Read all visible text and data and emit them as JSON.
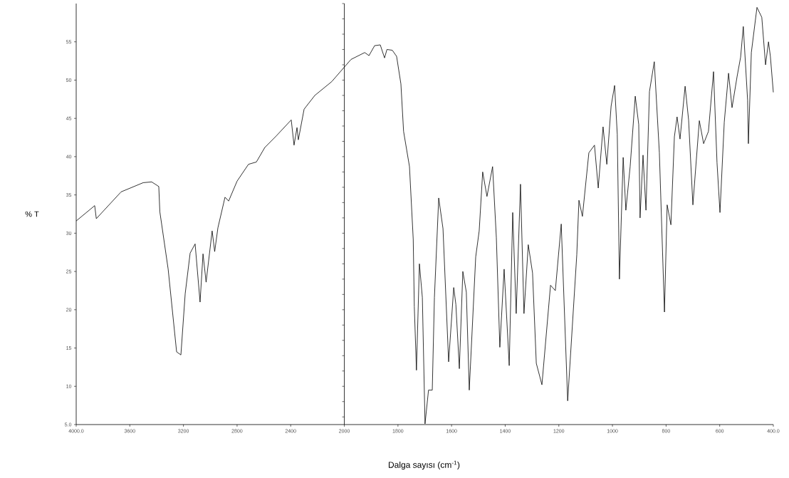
{
  "chart_data": [
    {
      "type": "line",
      "xlabel": "Dalga sayısı (cm$^{-1}$)",
      "ylabel": "% T",
      "xlim": [
        4000,
        2000
      ],
      "ylim": [
        5,
        60
      ],
      "xticks": [
        {
          "value": 4000,
          "label": "4000.0"
        },
        3600,
        3200,
        2800,
        2400,
        2000
      ],
      "yticks": [
        {
          "value": 5,
          "label": "5.0"
        },
        10,
        15,
        20,
        25,
        30,
        35,
        40,
        45,
        50,
        55
      ],
      "series": [
        {
          "color": "#000000",
          "x": [
            4000,
            3862,
            3850,
            3665,
            3500,
            3437,
            3384,
            3376,
            3314,
            3251,
            3219,
            3187,
            3150,
            3113,
            3076,
            3054,
            3031,
            2986,
            2967,
            2943,
            2890,
            2863,
            2800,
            2715,
            2656,
            2593,
            2508,
            2396,
            2375,
            2353,
            2343,
            2300,
            2220,
            2094,
            2000
          ],
          "values": [
            31.6,
            33.6,
            31.9,
            35.4,
            36.6,
            36.7,
            36.1,
            32.8,
            25.3,
            14.5,
            14.1,
            22.1,
            27.4,
            28.6,
            21.0,
            27.3,
            23.6,
            30.3,
            27.6,
            30.7,
            34.7,
            34.2,
            36.8,
            39.0,
            39.3,
            41.2,
            42.7,
            44.8,
            41.5,
            43.8,
            42.2,
            46.2,
            48.0,
            49.8,
            51.7
          ]
        }
      ]
    },
    {
      "type": "line",
      "tick_labels": "x",
      "xlim": [
        2000,
        400
      ],
      "ylim": [
        5,
        60
      ],
      "xticks": [
        1800,
        1600,
        1400,
        1200,
        1000,
        800,
        600,
        {
          "value": 400,
          "label": "400.0"
        }
      ],
      "series": [
        {
          "color": "#000000",
          "x": [
            2000,
            1975,
            1924,
            1908,
            1887,
            1866,
            1850,
            1841,
            1821,
            1805,
            1789,
            1779,
            1757,
            1743,
            1739,
            1731,
            1720,
            1709,
            1699,
            1686,
            1672,
            1664,
            1648,
            1632,
            1611,
            1592,
            1584,
            1571,
            1558,
            1545,
            1534,
            1510,
            1497,
            1484,
            1468,
            1447,
            1433,
            1420,
            1404,
            1385,
            1372,
            1359,
            1343,
            1330,
            1314,
            1298,
            1284,
            1263,
            1231,
            1213,
            1191,
            1167,
            1133,
            1125,
            1112,
            1088,
            1067,
            1053,
            1035,
            1021,
            1008,
            1005,
            992,
            982,
            974,
            960,
            950,
            934,
            915,
            902,
            897,
            886,
            875,
            862,
            844,
            825,
            806,
            796,
            782,
            769,
            759,
            748,
            729,
            716,
            700,
            676,
            660,
            642,
            623,
            610,
            599,
            583,
            567,
            554,
            535,
            522,
            512,
            496,
            493,
            482,
            461,
            443,
            429,
            418,
            411,
            400
          ],
          "values": [
            51.7,
            52.7,
            53.6,
            53.2,
            54.5,
            54.6,
            52.9,
            54.0,
            53.9,
            53.1,
            49.5,
            43.3,
            38.7,
            29.2,
            20.4,
            12.1,
            26.0,
            21.6,
            5.1,
            9.5,
            9.5,
            21.6,
            34.6,
            30.6,
            13.2,
            22.9,
            20.7,
            12.3,
            25.0,
            22.3,
            9.5,
            26.9,
            30.3,
            38.0,
            34.8,
            38.7,
            29.4,
            15.1,
            25.3,
            12.7,
            32.7,
            19.5,
            36.4,
            19.5,
            28.5,
            24.8,
            13.0,
            10.2,
            23.2,
            22.5,
            31.2,
            8.1,
            27.2,
            34.3,
            32.2,
            40.5,
            41.5,
            35.9,
            43.9,
            39.0,
            45.2,
            46.6,
            49.3,
            42.9,
            24.0,
            39.9,
            33.0,
            38.7,
            47.9,
            44.2,
            32.0,
            40.2,
            33.0,
            48.5,
            52.4,
            40.5,
            19.7,
            33.7,
            31.1,
            42.6,
            45.2,
            42.3,
            49.2,
            44.8,
            33.7,
            44.7,
            41.7,
            43.3,
            51.1,
            39.2,
            32.7,
            44.5,
            50.9,
            46.4,
            50.5,
            53.0,
            57.0,
            47.4,
            41.7,
            53.6,
            59.5,
            58.2,
            52.0,
            55.0,
            53.1,
            48.4
          ]
        }
      ]
    }
  ]
}
